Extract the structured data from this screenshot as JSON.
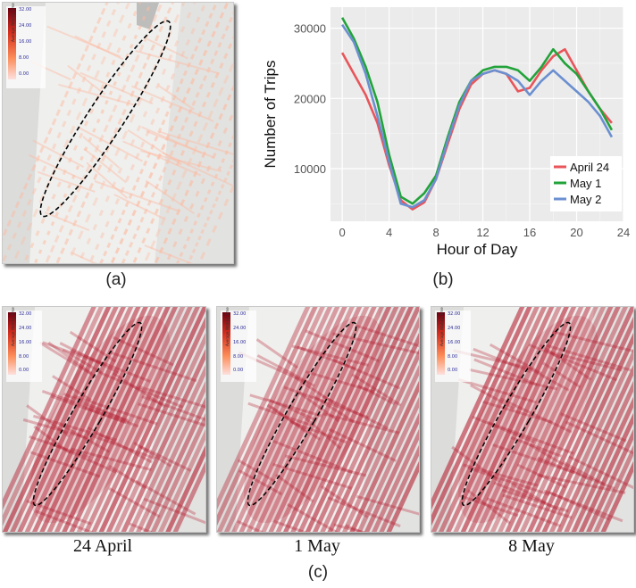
{
  "captions": {
    "a": "(a)",
    "b": "(b)",
    "c": "(c)",
    "c_dates": [
      "24 April",
      "1 May",
      "8 May"
    ]
  },
  "legends": {
    "a": {
      "title": "Average Waiting Time",
      "ticks": [
        "32.00",
        "24.00",
        "16.00",
        "8.00",
        "0.00"
      ]
    },
    "c": {
      "title": "Average Waiting Time",
      "ticks": [
        "32.00",
        "24.00",
        "16.00",
        "8.00",
        "0.00"
      ]
    }
  },
  "colors": {
    "heat_dark": "#b2182b",
    "heat_light": "#fcbba1",
    "ellipse": "#000000"
  },
  "chart_data": {
    "type": "line",
    "xlabel": "Hour of Day",
    "ylabel": "Number of Trips",
    "xlim": [
      -1,
      24
    ],
    "ylim": [
      2500,
      33000
    ],
    "xticks": [
      0,
      4,
      8,
      12,
      16,
      20,
      24
    ],
    "yticks": [
      10000,
      20000,
      30000
    ],
    "grid": true,
    "legend_position": "bottom-right",
    "x": [
      0,
      1,
      2,
      3,
      4,
      5,
      6,
      7,
      8,
      9,
      10,
      11,
      12,
      13,
      14,
      15,
      16,
      17,
      18,
      19,
      20,
      21,
      22,
      23
    ],
    "series": [
      {
        "name": "April 24",
        "color": "#e8555a",
        "values": [
          26500,
          23500,
          20500,
          16500,
          10500,
          5500,
          4200,
          5200,
          8500,
          13500,
          18500,
          22000,
          23500,
          24000,
          23500,
          21000,
          21500,
          24000,
          26000,
          27000,
          24000,
          21000,
          18500,
          16500
        ]
      },
      {
        "name": "May 1",
        "color": "#22a33a",
        "values": [
          31500,
          28500,
          24500,
          19500,
          12000,
          6000,
          5000,
          6500,
          9000,
          14500,
          19500,
          22500,
          24000,
          24500,
          24500,
          24000,
          22500,
          24500,
          27000,
          25000,
          23500,
          21000,
          18500,
          15500
        ]
      },
      {
        "name": "May 2",
        "color": "#6b8fd0",
        "values": [
          30500,
          28000,
          23500,
          17500,
          11000,
          5000,
          4500,
          5500,
          8500,
          14000,
          19000,
          22500,
          23500,
          24000,
          23500,
          22500,
          20500,
          22500,
          24000,
          22500,
          21000,
          19500,
          17500,
          14500
        ]
      }
    ]
  }
}
